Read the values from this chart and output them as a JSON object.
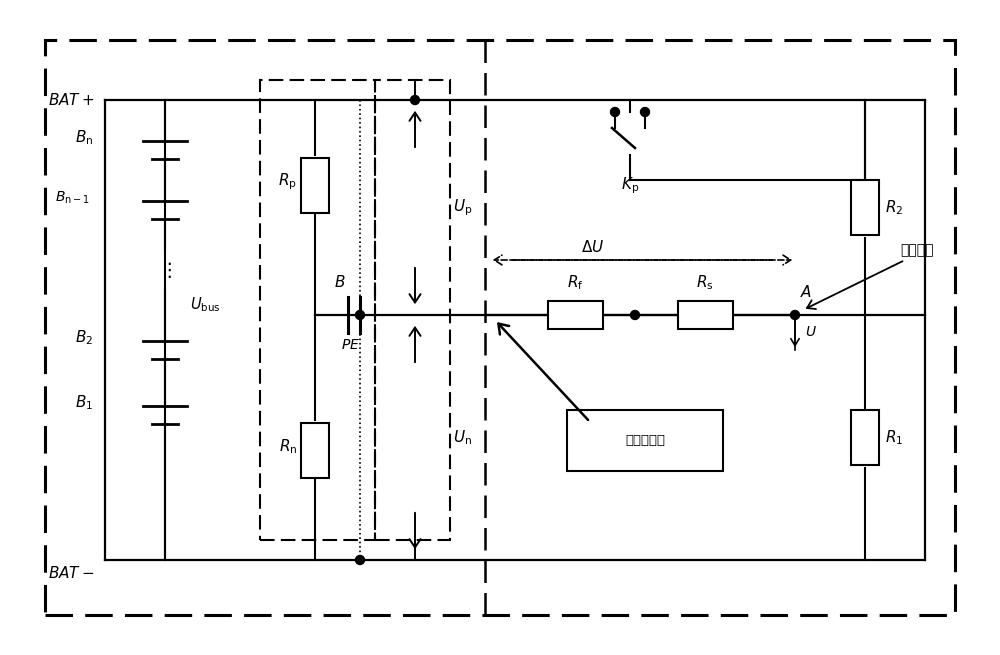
{
  "bg_color": "#ffffff",
  "line_color": "#000000",
  "fig_width": 10.0,
  "fig_height": 6.55,
  "dpi": 100,
  "xlim": [
    0,
    100
  ],
  "ylim": [
    0,
    65.5
  ]
}
